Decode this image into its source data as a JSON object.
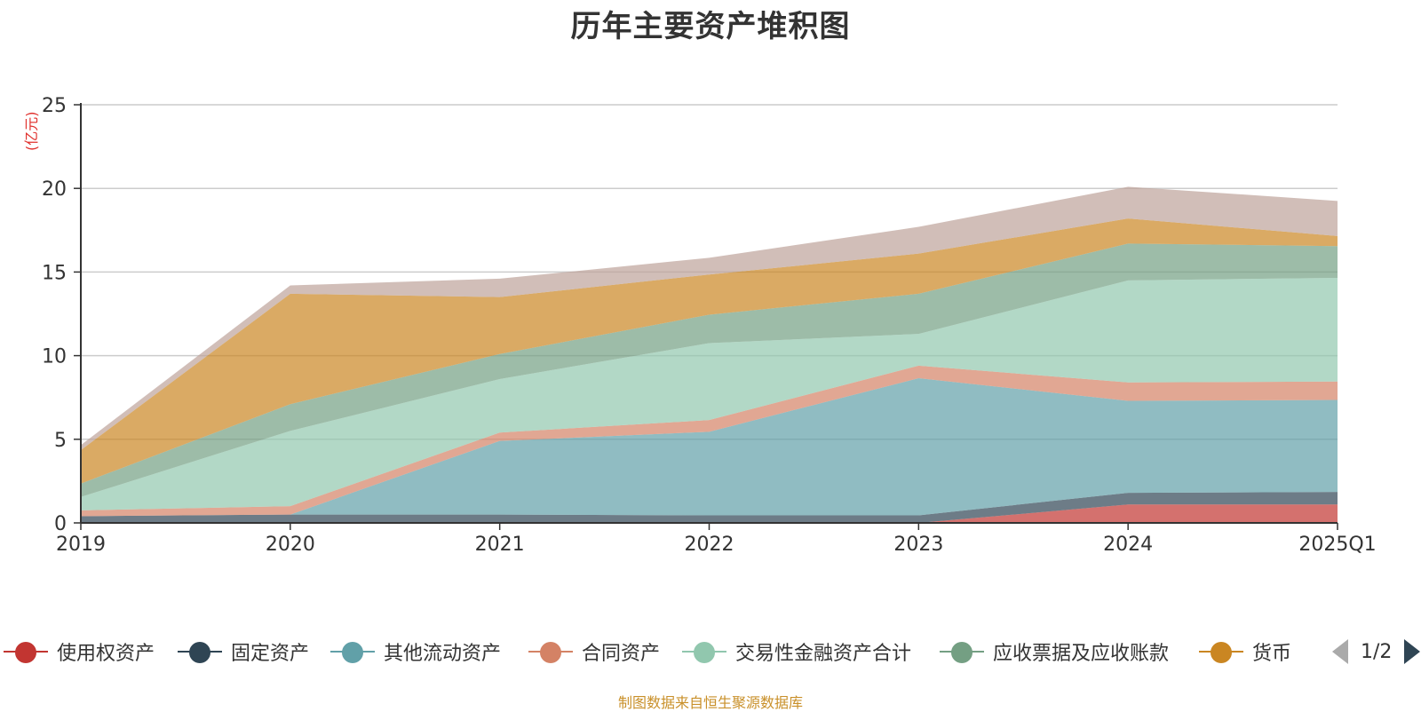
{
  "page": {
    "title": "历年主要资产堆积图",
    "source_note": "制图数据来自恒生聚源数据库",
    "pager_text": "1/2"
  },
  "chart_data": {
    "type": "area",
    "stacked": true,
    "title": "历年主要资产堆积图",
    "ylabel": "(亿元)",
    "xlabel": "",
    "ylim": [
      0,
      25
    ],
    "yticks": [
      0,
      5,
      10,
      15,
      20,
      25
    ],
    "grid": true,
    "legend_position": "bottom",
    "categories": [
      "2019",
      "2020",
      "2021",
      "2022",
      "2023",
      "2024",
      "2025Q1"
    ],
    "series": [
      {
        "name": "使用权资产",
        "color": "#c23531",
        "values": [
          0,
          0,
          0,
          0,
          0,
          1.1,
          1.1
        ]
      },
      {
        "name": "固定资产",
        "color": "#2f4554",
        "values": [
          0.4,
          0.5,
          0.5,
          0.45,
          0.45,
          0.7,
          0.75
        ]
      },
      {
        "name": "其他流动资产",
        "color": "#61a0a8",
        "values": [
          0,
          0,
          4.4,
          5.0,
          8.2,
          5.5,
          5.5
        ]
      },
      {
        "name": "合同资产",
        "color": "#d48265",
        "values": [
          0.35,
          0.5,
          0.5,
          0.7,
          0.75,
          1.1,
          1.1
        ]
      },
      {
        "name": "交易性金融资产合计",
        "color": "#91c7ae",
        "values": [
          0.8,
          4.5,
          3.2,
          4.6,
          1.9,
          6.1,
          6.2
        ]
      },
      {
        "name": "应收票据及应收账款",
        "color": "#749f83",
        "values": [
          0.8,
          1.6,
          1.5,
          1.7,
          2.4,
          2.2,
          1.9
        ]
      },
      {
        "name": "货币",
        "color": "#ca8622",
        "values": [
          2.0,
          6.6,
          3.4,
          2.4,
          2.4,
          1.5,
          0.6
        ]
      },
      {
        "name": "",
        "color": "#bda29a",
        "values": [
          0.3,
          0.5,
          1.1,
          1.0,
          1.6,
          1.9,
          2.1
        ]
      }
    ]
  }
}
